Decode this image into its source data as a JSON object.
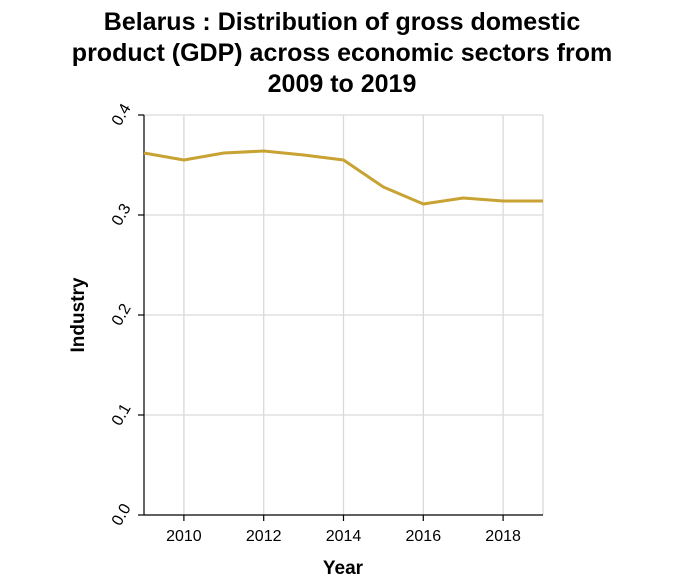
{
  "chart_data": {
    "type": "line",
    "title_lines": [
      "Belarus : Distribution of gross domestic",
      "product (GDP) across economic sectors from",
      "2009 to 2019"
    ],
    "xlabel": "Year",
    "ylabel": "Industry",
    "xlim": [
      2009,
      2019
    ],
    "ylim": [
      0,
      0.4
    ],
    "x_ticks": [
      2010,
      2012,
      2014,
      2016,
      2018
    ],
    "y_ticks": [
      "0.0",
      "0.1",
      "0.2",
      "0.3",
      "0.4"
    ],
    "grid": true,
    "series": [
      {
        "color": "#c8a232",
        "points": [
          {
            "x": 2009,
            "y": 0.362
          },
          {
            "x": 2010,
            "y": 0.355
          },
          {
            "x": 2011,
            "y": 0.362
          },
          {
            "x": 2012,
            "y": 0.364
          },
          {
            "x": 2013,
            "y": 0.36
          },
          {
            "x": 2014,
            "y": 0.355
          },
          {
            "x": 2015,
            "y": 0.328
          },
          {
            "x": 2016,
            "y": 0.311
          },
          {
            "x": 2017,
            "y": 0.317
          },
          {
            "x": 2018,
            "y": 0.314
          },
          {
            "x": 2019,
            "y": 0.314
          }
        ]
      }
    ]
  }
}
